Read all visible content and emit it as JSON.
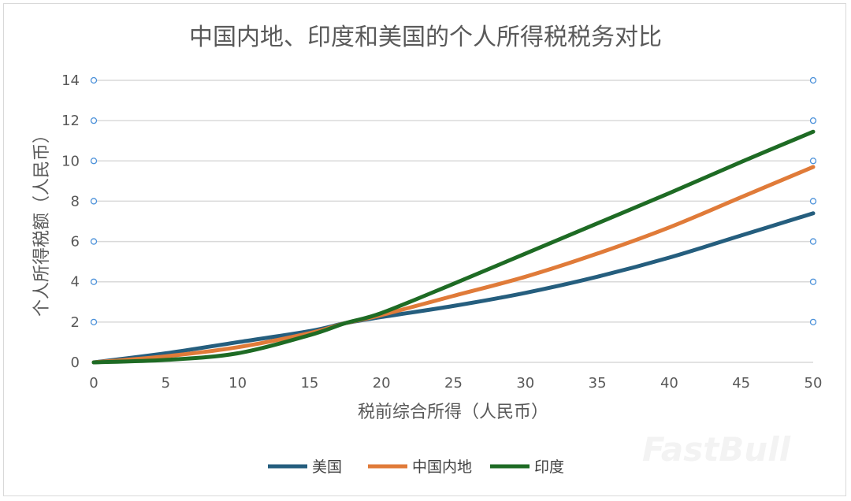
{
  "chart_data": {
    "type": "line",
    "title": "中国内地、印度和美国的个人所得税税务对比",
    "xlabel": "税前综合所得（人民币）",
    "ylabel": "个人所得税额（人民币）",
    "xlim": [
      0,
      50
    ],
    "ylim": [
      0,
      14
    ],
    "xticks": [
      0,
      5,
      10,
      15,
      20,
      25,
      30,
      35,
      40,
      45,
      50
    ],
    "yticks": [
      0,
      2,
      4,
      6,
      8,
      10,
      12,
      14
    ],
    "grid": true,
    "legend_position": "bottom",
    "x": [
      0,
      5,
      10,
      15,
      17.5,
      20,
      25,
      30,
      35,
      40,
      45,
      50
    ],
    "series": [
      {
        "name": "美国",
        "color": "#255e7e",
        "values": [
          0,
          0.45,
          1.0,
          1.55,
          1.95,
          2.25,
          2.8,
          3.45,
          4.25,
          5.2,
          6.3,
          7.4
        ]
      },
      {
        "name": "中国内地",
        "color": "#e07b39",
        "values": [
          0,
          0.3,
          0.75,
          1.45,
          1.95,
          2.35,
          3.3,
          4.25,
          5.4,
          6.7,
          8.2,
          9.7
        ]
      },
      {
        "name": "印度",
        "color": "#1e6b24",
        "values": [
          0,
          0.12,
          0.45,
          1.35,
          1.95,
          2.45,
          3.9,
          5.4,
          6.9,
          8.4,
          9.95,
          11.45
        ]
      }
    ]
  },
  "watermark": "FastBull"
}
